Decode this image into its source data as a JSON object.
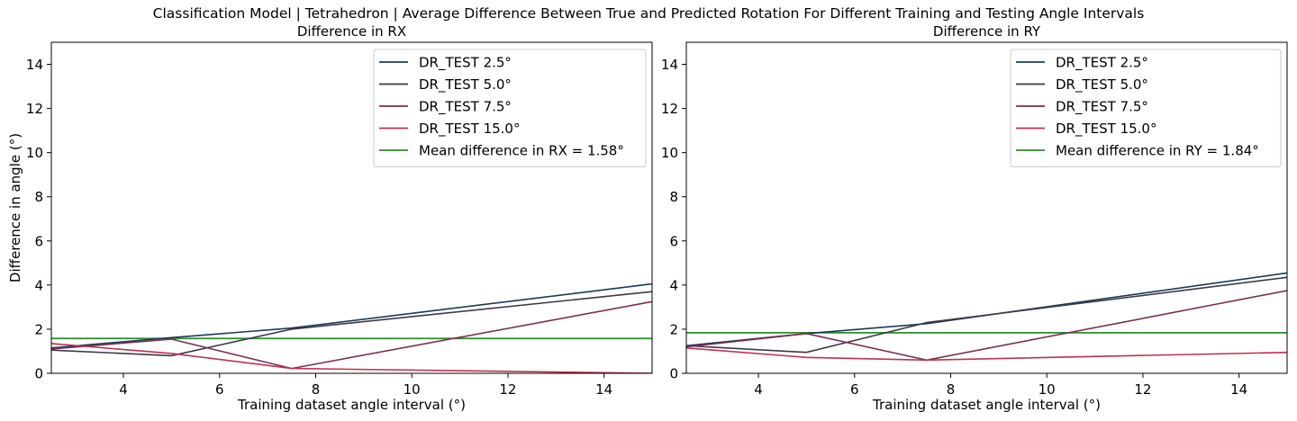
{
  "figure": {
    "suptitle": "Classification Model | Tetrahedron | Average Difference Between True and Predicted Rotation For Different Training and Testing Angle Intervals"
  },
  "chart_data": [
    {
      "type": "line",
      "title": "Difference in RX",
      "xlabel": "Training dataset angle interval (°)",
      "ylabel": "Difference in angle (°)",
      "xlim": [
        2.5,
        15
      ],
      "ylim": [
        0,
        15
      ],
      "xticks": [
        4,
        6,
        8,
        10,
        12,
        14
      ],
      "yticks": [
        0,
        2,
        4,
        6,
        8,
        10,
        12,
        14
      ],
      "grid": false,
      "legend_position": "top-right",
      "x": [
        2.5,
        5.0,
        7.5,
        15.0
      ],
      "series": [
        {
          "name": "DR_TEST 2.5°",
          "color": "#1b3a55",
          "values": [
            1.15,
            1.62,
            2.05,
            4.05
          ]
        },
        {
          "name": "DR_TEST 5.0°",
          "color": "#3f3848",
          "values": [
            1.05,
            0.8,
            2.0,
            3.7
          ]
        },
        {
          "name": "DR_TEST 7.5°",
          "color": "#7a3050",
          "values": [
            1.1,
            1.55,
            0.22,
            3.25
          ]
        },
        {
          "name": "DR_TEST 15.0°",
          "color": "#c03050",
          "values": [
            1.35,
            0.9,
            0.22,
            0.0
          ]
        }
      ],
      "hline": {
        "name": "Mean difference in RX = 1.58°",
        "color": "#2e8b2e",
        "value": 1.58
      }
    },
    {
      "type": "line",
      "title": "Difference in RY",
      "xlabel": "Training dataset angle interval (°)",
      "ylabel": "",
      "xlim": [
        2.5,
        15
      ],
      "ylim": [
        0,
        15
      ],
      "xticks": [
        4,
        6,
        8,
        10,
        12,
        14
      ],
      "yticks": [
        0,
        2,
        4,
        6,
        8,
        10,
        12,
        14
      ],
      "grid": false,
      "legend_position": "top-right",
      "x": [
        2.5,
        5.0,
        7.5,
        15.0
      ],
      "series": [
        {
          "name": "DR_TEST 2.5°",
          "color": "#1b3a55",
          "values": [
            1.25,
            1.8,
            2.25,
            4.55
          ]
        },
        {
          "name": "DR_TEST 5.0°",
          "color": "#3f3848",
          "values": [
            1.25,
            0.95,
            2.3,
            4.35
          ]
        },
        {
          "name": "DR_TEST 7.5°",
          "color": "#7a3050",
          "values": [
            1.2,
            1.8,
            0.6,
            3.75
          ]
        },
        {
          "name": "DR_TEST 15.0°",
          "color": "#c03050",
          "values": [
            1.15,
            0.72,
            0.6,
            0.95
          ]
        }
      ],
      "hline": {
        "name": "Mean difference in RY = 1.84°",
        "color": "#2e8b2e",
        "value": 1.84
      }
    }
  ]
}
